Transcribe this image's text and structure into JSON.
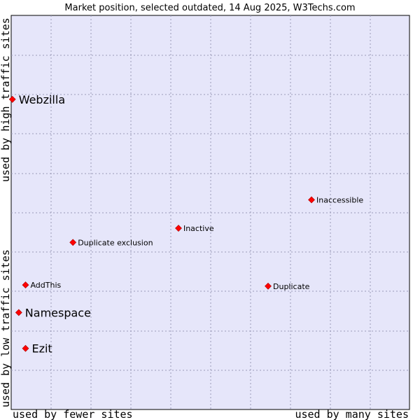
{
  "chart_data": {
    "type": "scatter",
    "title": "Market position, selected outdated, 14 Aug 2025, W3Techs.com",
    "xlabel_low": "used by fewer sites",
    "xlabel_high": "used by many sites",
    "ylabel_low": "used by low traffic sites",
    "ylabel_high": "used by high traffic sites",
    "xlim": [
      0,
      100
    ],
    "ylim": [
      0,
      100
    ],
    "grid": true,
    "colors": {
      "plot_bg": "#e6e6fa",
      "point": "#ff0000",
      "point_edge": "#aa0000",
      "frame": "#000000"
    },
    "points": [
      {
        "label": "Webzilla",
        "x": 0.3,
        "y": 78.7,
        "size": "large"
      },
      {
        "label": "Inaccessible",
        "x": 75.4,
        "y": 53.2,
        "size": "small"
      },
      {
        "label": "Inactive",
        "x": 42.0,
        "y": 46.0,
        "size": "small"
      },
      {
        "label": "Duplicate exclusion",
        "x": 15.5,
        "y": 42.4,
        "size": "small"
      },
      {
        "label": "AddThis",
        "x": 3.6,
        "y": 31.6,
        "size": "small"
      },
      {
        "label": "Duplicate",
        "x": 64.5,
        "y": 31.3,
        "size": "small"
      },
      {
        "label": "Namespace",
        "x": 1.9,
        "y": 24.6,
        "size": "large"
      },
      {
        "label": "Ezit",
        "x": 3.6,
        "y": 15.5,
        "size": "large"
      }
    ]
  }
}
